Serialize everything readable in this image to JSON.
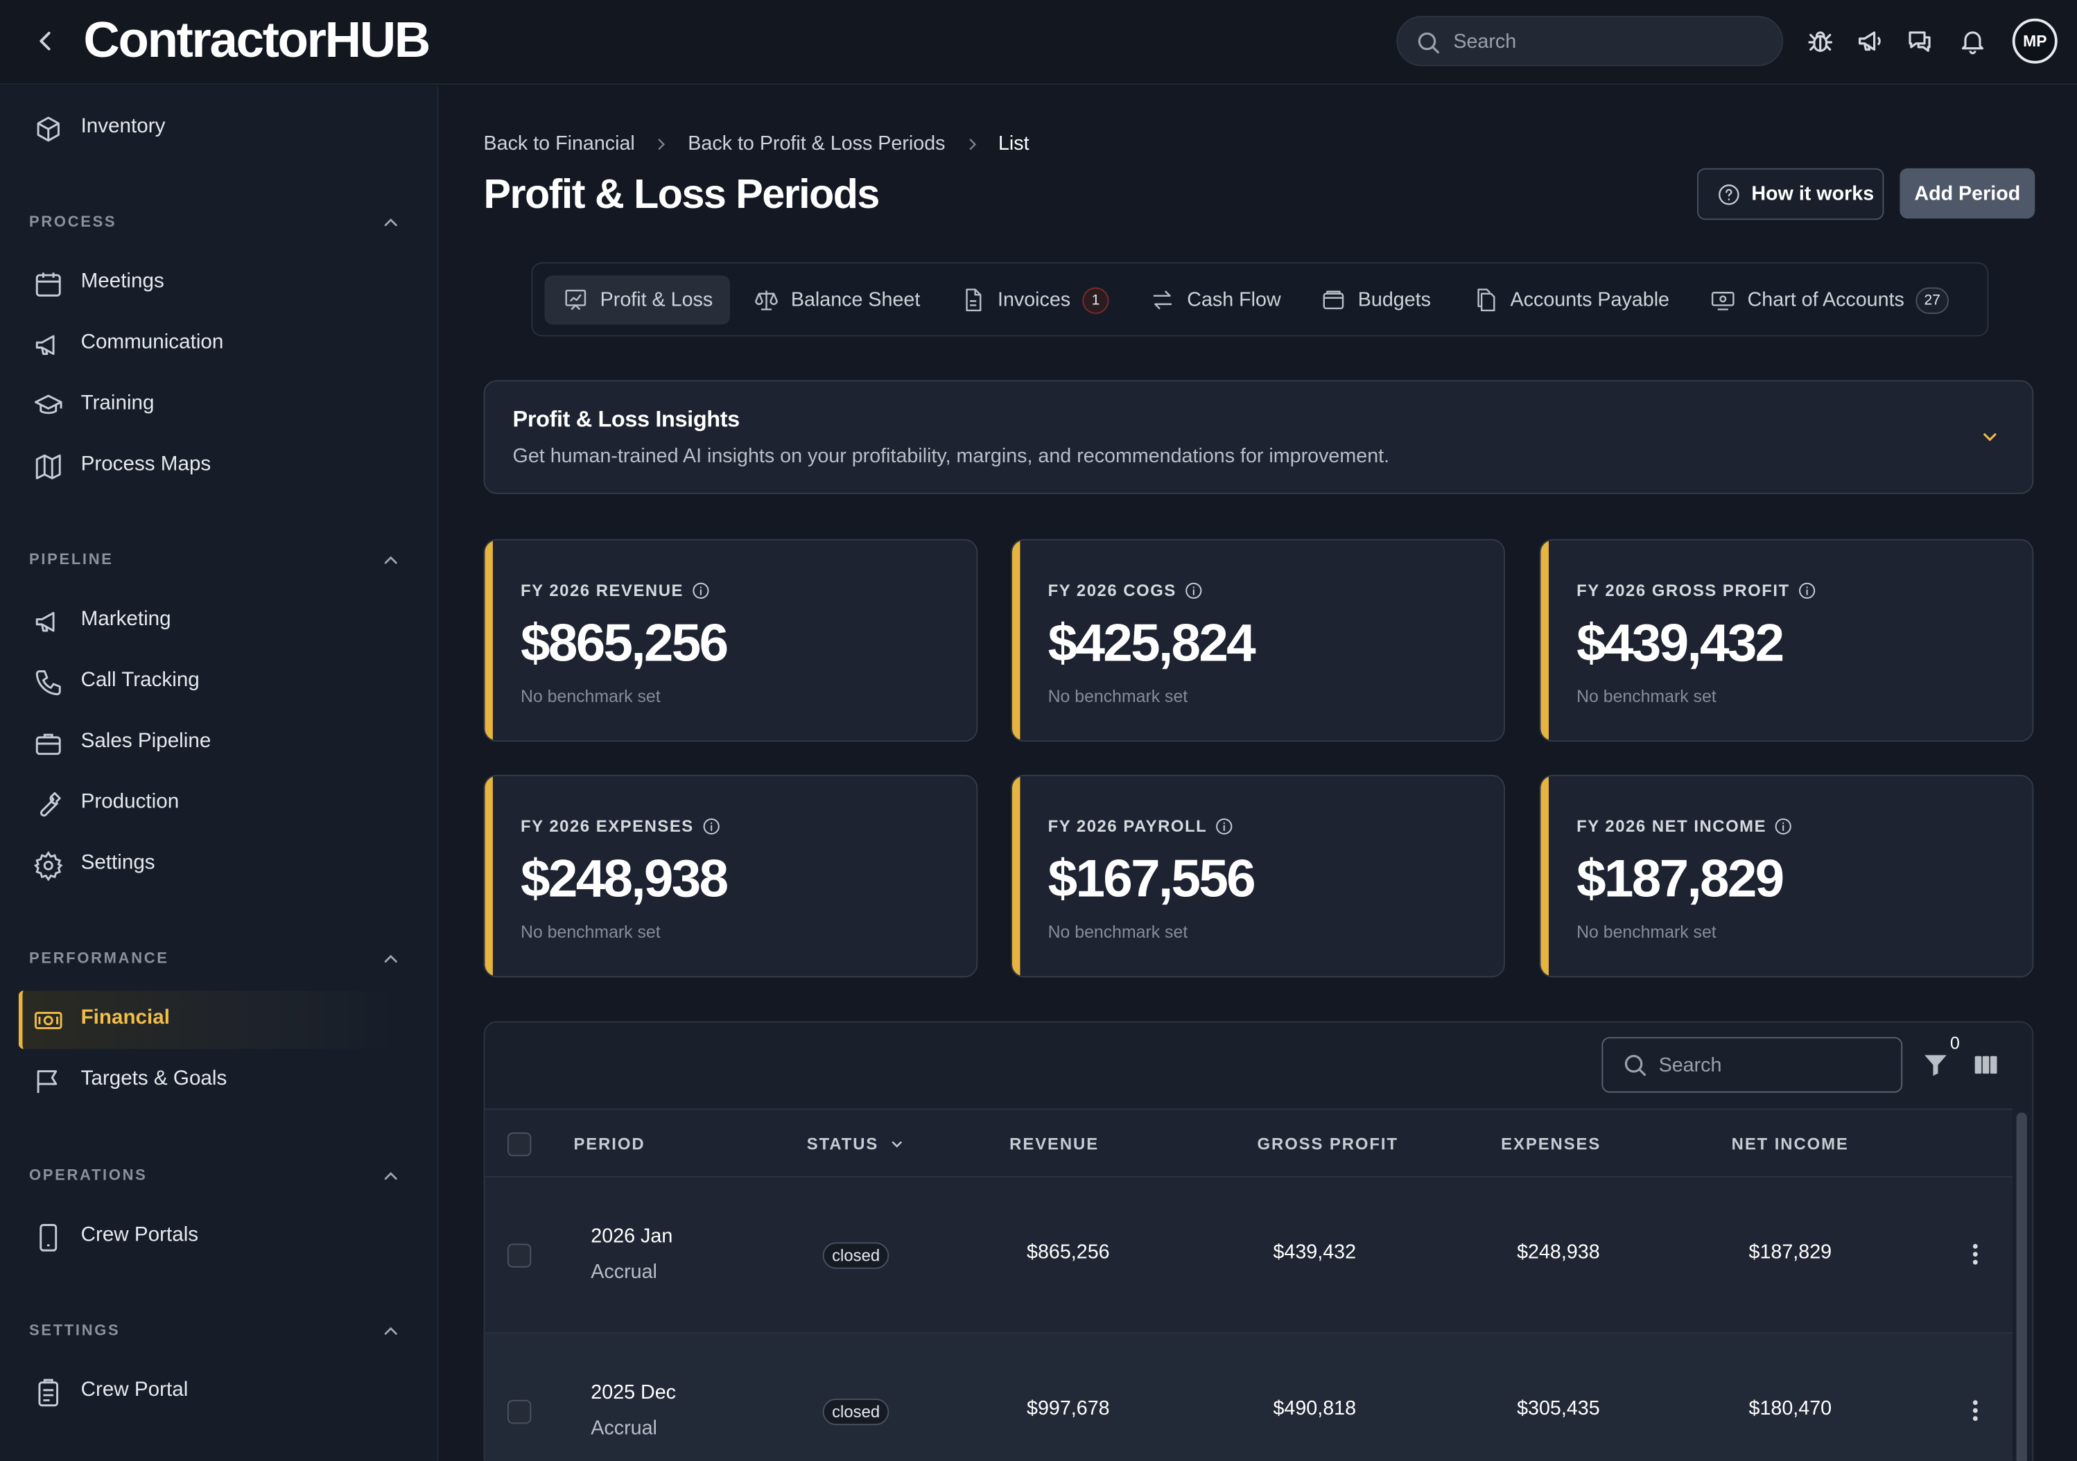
{
  "app": {
    "logo": "ContractorHUB"
  },
  "topbar": {
    "search_placeholder": "Search",
    "avatar_initials": "MP",
    "icons": [
      "back-chevron-icon",
      "bug-icon",
      "megaphone-icon",
      "chat-icon",
      "bell-icon"
    ]
  },
  "sidebar": {
    "top_item": {
      "label": "Inventory",
      "icon": "box-icon"
    },
    "sections": [
      {
        "title": "PROCESS",
        "items": [
          {
            "label": "Meetings",
            "icon": "calendar-icon"
          },
          {
            "label": "Communication",
            "icon": "megaphone-icon"
          },
          {
            "label": "Training",
            "icon": "graduation-cap-icon"
          },
          {
            "label": "Process Maps",
            "icon": "map-icon"
          }
        ]
      },
      {
        "title": "PIPELINE",
        "items": [
          {
            "label": "Marketing",
            "icon": "megaphone-icon"
          },
          {
            "label": "Call Tracking",
            "icon": "phone-icon"
          },
          {
            "label": "Sales Pipeline",
            "icon": "briefcase-icon"
          },
          {
            "label": "Production",
            "icon": "wrench-icon"
          },
          {
            "label": "Settings",
            "icon": "gear-icon"
          }
        ]
      },
      {
        "title": "PERFORMANCE",
        "items": [
          {
            "label": "Financial",
            "icon": "money-icon",
            "active": true
          },
          {
            "label": "Targets & Goals",
            "icon": "flag-icon"
          }
        ]
      },
      {
        "title": "OPERATIONS",
        "items": [
          {
            "label": "Crew Portals",
            "icon": "phone-device-icon"
          }
        ]
      },
      {
        "title": "SETTINGS",
        "items": [
          {
            "label": "Crew Portal",
            "icon": "clipboard-icon"
          }
        ]
      }
    ]
  },
  "breadcrumb": [
    "Back to Financial",
    "Back to Profit & Loss Periods",
    "List"
  ],
  "page_title": "Profit & Loss Periods",
  "buttons": {
    "how_it_works": "How it works",
    "add_period": "Add Period"
  },
  "tabs": [
    {
      "label": "Profit & Loss",
      "icon": "chart-icon",
      "active": true
    },
    {
      "label": "Balance Sheet",
      "icon": "scale-icon"
    },
    {
      "label": "Invoices",
      "icon": "document-icon",
      "count": "1"
    },
    {
      "label": "Cash Flow",
      "icon": "arrows-icon"
    },
    {
      "label": "Budgets",
      "icon": "wallet-icon"
    },
    {
      "label": "Accounts Payable",
      "icon": "copy-icon"
    },
    {
      "label": "Chart of Accounts",
      "icon": "ledger-icon",
      "count": "27"
    }
  ],
  "insights": {
    "title": "Profit & Loss Insights",
    "description": "Get human-trained AI insights on your profitability, margins, and recommendations for improvement."
  },
  "kpis": [
    {
      "label": "FY 2026 REVENUE",
      "value": "$865,256",
      "benchmark": "No benchmark set"
    },
    {
      "label": "FY 2026 COGS",
      "value": "$425,824",
      "benchmark": "No benchmark set"
    },
    {
      "label": "FY 2026 GROSS PROFIT",
      "value": "$439,432",
      "benchmark": "No benchmark set"
    },
    {
      "label": "FY 2026 EXPENSES",
      "value": "$248,938",
      "benchmark": "No benchmark set"
    },
    {
      "label": "FY 2026 PAYROLL",
      "value": "$167,556",
      "benchmark": "No benchmark set"
    },
    {
      "label": "FY 2026 NET INCOME",
      "value": "$187,829",
      "benchmark": "No benchmark set"
    }
  ],
  "table": {
    "search_placeholder": "Search",
    "filter_count": "0",
    "columns": [
      "PERIOD",
      "STATUS",
      "REVENUE",
      "GROSS PROFIT",
      "EXPENSES",
      "NET INCOME"
    ],
    "rows": [
      {
        "period": "2026 Jan",
        "basis": "Accrual",
        "status": "closed",
        "revenue": "$865,256",
        "gross_profit": "$439,432",
        "expenses": "$248,938",
        "net_income": "$187,829"
      },
      {
        "period": "2025 Dec",
        "basis": "Accrual",
        "status": "closed",
        "revenue": "$997,678",
        "gross_profit": "$490,818",
        "expenses": "$305,435",
        "net_income": "$180,470"
      }
    ]
  }
}
